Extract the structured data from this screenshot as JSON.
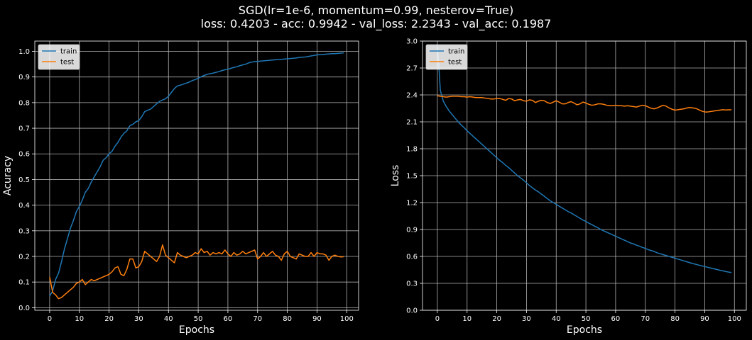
{
  "title_line1": "SGD(lr=1e-6, momentum=0.99, nesterov=True)",
  "title_line2": "loss: 0.4203 - acc: 0.9942 - val_loss: 2.2343 - val_acc: 0.1987",
  "colors": {
    "background": "#000000",
    "train": "#1f77b4",
    "test": "#ff7f0e",
    "grid": "#b0b0b0",
    "axes": "#ffffff",
    "legend_bg": "#ffffff"
  },
  "chart_data": [
    {
      "type": "line",
      "xlabel": "Epochs",
      "ylabel": "Acuracy",
      "xlim": [
        -5,
        104
      ],
      "ylim": [
        -0.01,
        1.04
      ],
      "xticks": [
        0,
        10,
        20,
        30,
        40,
        50,
        60,
        70,
        80,
        90,
        100
      ],
      "xtick_labels": [
        "0",
        "10",
        "20",
        "30",
        "40",
        "50",
        "60",
        "70",
        "80",
        "90",
        "100"
      ],
      "yticks": [
        0.0,
        0.1,
        0.2,
        0.3,
        0.4,
        0.5,
        0.6,
        0.7,
        0.8,
        0.9,
        1.0
      ],
      "ytick_labels": [
        "0.0",
        "0.1",
        "0.2",
        "0.3",
        "0.4",
        "0.5",
        "0.6",
        "0.7",
        "0.8",
        "0.9",
        "1.0"
      ],
      "grid": true,
      "legend_position": "top-left",
      "series": [
        {
          "name": "train",
          "color": "#1f77b4",
          "x": [
            0,
            1,
            2,
            3,
            4,
            5,
            6,
            7,
            8,
            9,
            10,
            11,
            12,
            13,
            14,
            15,
            16,
            17,
            18,
            19,
            20,
            21,
            22,
            23,
            24,
            25,
            26,
            27,
            28,
            29,
            30,
            31,
            32,
            33,
            34,
            35,
            36,
            37,
            38,
            39,
            40,
            41,
            42,
            43,
            44,
            45,
            46,
            47,
            48,
            49,
            50,
            51,
            52,
            53,
            54,
            55,
            56,
            57,
            58,
            59,
            60,
            61,
            62,
            63,
            64,
            65,
            66,
            67,
            68,
            69,
            70,
            71,
            72,
            73,
            74,
            75,
            76,
            77,
            78,
            79,
            80,
            81,
            82,
            83,
            84,
            85,
            86,
            87,
            88,
            89,
            90,
            91,
            92,
            93,
            94,
            95,
            96,
            97,
            98,
            99
          ],
          "values": [
            0.045,
            0.065,
            0.11,
            0.135,
            0.18,
            0.23,
            0.27,
            0.31,
            0.34,
            0.375,
            0.395,
            0.42,
            0.45,
            0.465,
            0.49,
            0.51,
            0.53,
            0.55,
            0.575,
            0.585,
            0.6,
            0.61,
            0.63,
            0.645,
            0.665,
            0.68,
            0.69,
            0.71,
            0.715,
            0.725,
            0.73,
            0.745,
            0.765,
            0.77,
            0.775,
            0.785,
            0.795,
            0.805,
            0.81,
            0.815,
            0.825,
            0.84,
            0.855,
            0.865,
            0.868,
            0.872,
            0.876,
            0.88,
            0.886,
            0.89,
            0.895,
            0.901,
            0.906,
            0.91,
            0.913,
            0.915,
            0.918,
            0.921,
            0.925,
            0.928,
            0.93,
            0.934,
            0.937,
            0.94,
            0.944,
            0.947,
            0.95,
            0.955,
            0.958,
            0.96,
            0.961,
            0.962,
            0.963,
            0.964,
            0.965,
            0.966,
            0.967,
            0.968,
            0.969,
            0.97,
            0.971,
            0.972,
            0.973,
            0.974,
            0.976,
            0.977,
            0.978,
            0.98,
            0.982,
            0.984,
            0.986,
            0.987,
            0.988,
            0.989,
            0.99,
            0.991,
            0.991,
            0.992,
            0.993,
            0.994
          ]
        },
        {
          "name": "test",
          "color": "#ff7f0e",
          "x": [
            0,
            1,
            2,
            3,
            4,
            5,
            6,
            7,
            8,
            9,
            10,
            11,
            12,
            13,
            14,
            15,
            16,
            17,
            18,
            19,
            20,
            21,
            22,
            23,
            24,
            25,
            26,
            27,
            28,
            29,
            30,
            31,
            32,
            33,
            34,
            35,
            36,
            37,
            38,
            39,
            40,
            41,
            42,
            43,
            44,
            45,
            46,
            47,
            48,
            49,
            50,
            51,
            52,
            53,
            54,
            55,
            56,
            57,
            58,
            59,
            60,
            61,
            62,
            63,
            64,
            65,
            66,
            67,
            68,
            69,
            70,
            71,
            72,
            73,
            74,
            75,
            76,
            77,
            78,
            79,
            80,
            81,
            82,
            83,
            84,
            85,
            86,
            87,
            88,
            89,
            90,
            91,
            92,
            93,
            94,
            95,
            96,
            97,
            98,
            99
          ],
          "values": [
            0.12,
            0.06,
            0.05,
            0.035,
            0.04,
            0.05,
            0.06,
            0.07,
            0.08,
            0.095,
            0.1,
            0.11,
            0.09,
            0.1,
            0.11,
            0.105,
            0.11,
            0.115,
            0.12,
            0.125,
            0.13,
            0.14,
            0.155,
            0.16,
            0.13,
            0.125,
            0.15,
            0.19,
            0.19,
            0.155,
            0.16,
            0.18,
            0.22,
            0.21,
            0.2,
            0.19,
            0.18,
            0.2,
            0.245,
            0.205,
            0.195,
            0.185,
            0.175,
            0.215,
            0.205,
            0.2,
            0.195,
            0.2,
            0.205,
            0.215,
            0.21,
            0.23,
            0.215,
            0.22,
            0.205,
            0.215,
            0.21,
            0.215,
            0.21,
            0.225,
            0.21,
            0.2,
            0.215,
            0.205,
            0.21,
            0.22,
            0.21,
            0.215,
            0.22,
            0.225,
            0.19,
            0.2,
            0.215,
            0.2,
            0.21,
            0.22,
            0.205,
            0.2,
            0.185,
            0.21,
            0.22,
            0.2,
            0.195,
            0.19,
            0.21,
            0.205,
            0.2,
            0.2,
            0.215,
            0.2,
            0.215,
            0.21,
            0.21,
            0.205,
            0.185,
            0.2,
            0.205,
            0.2,
            0.198,
            0.199
          ]
        }
      ]
    },
    {
      "type": "line",
      "xlabel": "Epochs",
      "ylabel": "Loss",
      "xlim": [
        -5,
        104
      ],
      "ylim": [
        0.0,
        3.0
      ],
      "xticks": [
        0,
        10,
        20,
        30,
        40,
        50,
        60,
        70,
        80,
        90,
        100
      ],
      "xtick_labels": [
        "0",
        "10",
        "20",
        "30",
        "40",
        "50",
        "60",
        "70",
        "80",
        "90",
        "100"
      ],
      "yticks": [
        0.0,
        0.3,
        0.6,
        0.9,
        1.2,
        1.5,
        1.8,
        2.1,
        2.4,
        2.7,
        3.0
      ],
      "ytick_labels": [
        "0.0",
        "0.3",
        "0.6",
        "0.9",
        "1.2",
        "1.5",
        "1.8",
        "2.1",
        "2.4",
        "2.7",
        "3.0"
      ],
      "grid": true,
      "legend_position": "top-left",
      "series": [
        {
          "name": "train",
          "color": "#1f77b4",
          "x": [
            0,
            0.5,
            1,
            2,
            3,
            4,
            5,
            6,
            7,
            8,
            9,
            10,
            11,
            12,
            13,
            14,
            15,
            16,
            17,
            18,
            19,
            20,
            21,
            22,
            23,
            24,
            25,
            26,
            27,
            28,
            29,
            30,
            31,
            32,
            33,
            34,
            35,
            36,
            37,
            38,
            39,
            40,
            41,
            42,
            43,
            44,
            45,
            46,
            47,
            48,
            49,
            50,
            51,
            52,
            53,
            54,
            55,
            56,
            57,
            58,
            59,
            60,
            61,
            62,
            63,
            64,
            65,
            66,
            67,
            68,
            69,
            70,
            71,
            72,
            73,
            74,
            75,
            76,
            77,
            78,
            79,
            80,
            81,
            82,
            83,
            84,
            85,
            86,
            87,
            88,
            89,
            90,
            91,
            92,
            93,
            94,
            95,
            96,
            97,
            98,
            99
          ],
          "values": [
            2.95,
            2.72,
            2.45,
            2.33,
            2.27,
            2.22,
            2.18,
            2.14,
            2.1,
            2.065,
            2.035,
            2.0,
            1.97,
            1.94,
            1.91,
            1.88,
            1.85,
            1.82,
            1.79,
            1.76,
            1.73,
            1.7,
            1.67,
            1.645,
            1.615,
            1.59,
            1.56,
            1.53,
            1.5,
            1.475,
            1.45,
            1.42,
            1.39,
            1.365,
            1.34,
            1.32,
            1.295,
            1.27,
            1.245,
            1.22,
            1.2,
            1.18,
            1.16,
            1.14,
            1.12,
            1.1,
            1.085,
            1.065,
            1.045,
            1.025,
            1.005,
            0.99,
            0.97,
            0.955,
            0.935,
            0.92,
            0.9,
            0.885,
            0.87,
            0.855,
            0.84,
            0.825,
            0.81,
            0.795,
            0.78,
            0.765,
            0.75,
            0.74,
            0.725,
            0.715,
            0.7,
            0.69,
            0.675,
            0.665,
            0.655,
            0.64,
            0.63,
            0.62,
            0.61,
            0.6,
            0.59,
            0.58,
            0.57,
            0.56,
            0.55,
            0.54,
            0.53,
            0.52,
            0.512,
            0.503,
            0.495,
            0.487,
            0.479,
            0.471,
            0.463,
            0.455,
            0.447,
            0.44,
            0.432,
            0.425,
            0.42
          ]
        },
        {
          "name": "test",
          "color": "#ff7f0e",
          "x": [
            0,
            1,
            2,
            3,
            4,
            5,
            6,
            7,
            8,
            9,
            10,
            11,
            12,
            13,
            14,
            15,
            16,
            17,
            18,
            19,
            20,
            21,
            22,
            23,
            24,
            25,
            26,
            27,
            28,
            29,
            30,
            31,
            32,
            33,
            34,
            35,
            36,
            37,
            38,
            39,
            40,
            41,
            42,
            43,
            44,
            45,
            46,
            47,
            48,
            49,
            50,
            51,
            52,
            53,
            54,
            55,
            56,
            57,
            58,
            59,
            60,
            61,
            62,
            63,
            64,
            65,
            66,
            67,
            68,
            69,
            70,
            71,
            72,
            73,
            74,
            75,
            76,
            77,
            78,
            79,
            80,
            81,
            82,
            83,
            84,
            85,
            86,
            87,
            88,
            89,
            90,
            91,
            92,
            93,
            94,
            95,
            96,
            97,
            98,
            99
          ],
          "values": [
            2.39,
            2.385,
            2.38,
            2.375,
            2.38,
            2.385,
            2.385,
            2.385,
            2.38,
            2.38,
            2.375,
            2.38,
            2.375,
            2.37,
            2.37,
            2.37,
            2.365,
            2.36,
            2.355,
            2.355,
            2.36,
            2.36,
            2.35,
            2.34,
            2.36,
            2.355,
            2.335,
            2.345,
            2.35,
            2.335,
            2.33,
            2.345,
            2.34,
            2.315,
            2.33,
            2.34,
            2.335,
            2.315,
            2.305,
            2.32,
            2.335,
            2.32,
            2.3,
            2.3,
            2.315,
            2.325,
            2.31,
            2.29,
            2.3,
            2.32,
            2.31,
            2.295,
            2.285,
            2.29,
            2.3,
            2.3,
            2.295,
            2.285,
            2.28,
            2.28,
            2.285,
            2.28,
            2.28,
            2.275,
            2.28,
            2.275,
            2.27,
            2.265,
            2.275,
            2.285,
            2.28,
            2.265,
            2.25,
            2.245,
            2.255,
            2.27,
            2.285,
            2.275,
            2.255,
            2.24,
            2.23,
            2.235,
            2.24,
            2.245,
            2.255,
            2.26,
            2.255,
            2.25,
            2.235,
            2.22,
            2.21,
            2.21,
            2.215,
            2.22,
            2.225,
            2.23,
            2.235,
            2.232,
            2.234,
            2.2343
          ]
        }
      ]
    }
  ]
}
